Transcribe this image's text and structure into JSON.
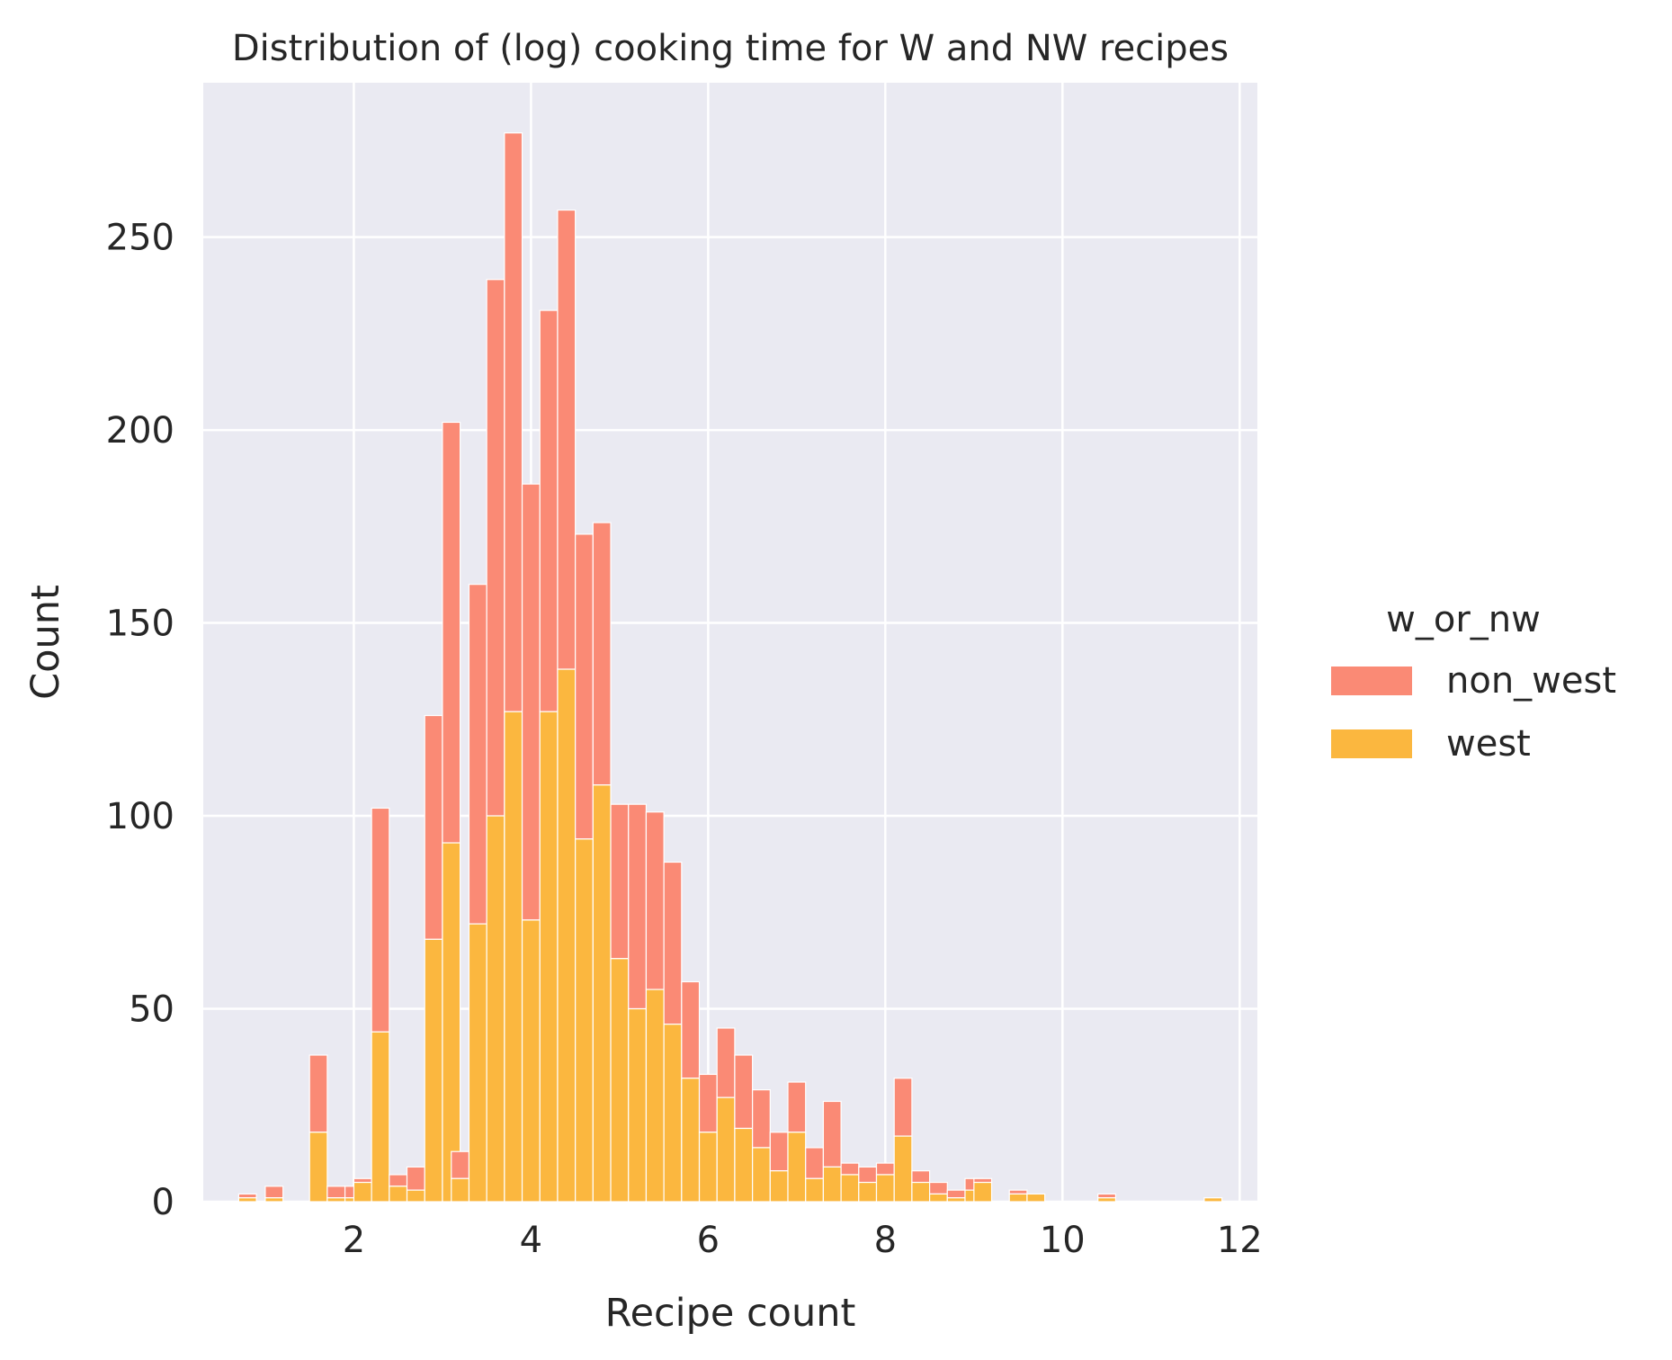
{
  "chart_data": {
    "type": "bar",
    "subtype": "stacked-histogram",
    "title": "Distribution of (log) cooking time for W and NW recipes",
    "xlabel": "Recipe count",
    "ylabel": "Count",
    "xlim": [
      0.3,
      12.2
    ],
    "ylim": [
      0,
      290
    ],
    "xticks": [
      2,
      4,
      6,
      8,
      10,
      12
    ],
    "yticks": [
      0,
      50,
      100,
      150,
      200,
      250
    ],
    "grid": true,
    "legend": {
      "title": "w_or_nw",
      "placement": "right",
      "entries": [
        "non_west",
        "west"
      ]
    },
    "colors": {
      "non_west": "#fa8a75",
      "west": "#fbb73f",
      "background": "#eaeaf2",
      "grid": "#ffffff"
    },
    "bin_width": 0.2,
    "series": [
      {
        "name": "west",
        "bins": [
          {
            "x": 0.8,
            "value": 1
          },
          {
            "x": 1.1,
            "value": 1
          },
          {
            "x": 1.6,
            "value": 18
          },
          {
            "x": 1.8,
            "value": 1
          },
          {
            "x": 2.0,
            "value": 1
          },
          {
            "x": 2.1,
            "value": 5
          },
          {
            "x": 2.3,
            "value": 44
          },
          {
            "x": 2.5,
            "value": 4
          },
          {
            "x": 2.7,
            "value": 3
          },
          {
            "x": 2.9,
            "value": 68
          },
          {
            "x": 3.1,
            "value": 93
          },
          {
            "x": 3.2,
            "value": 6
          },
          {
            "x": 3.4,
            "value": 72
          },
          {
            "x": 3.6,
            "value": 100
          },
          {
            "x": 3.8,
            "value": 127
          },
          {
            "x": 4.0,
            "value": 73
          },
          {
            "x": 4.2,
            "value": 127
          },
          {
            "x": 4.4,
            "value": 138
          },
          {
            "x": 4.6,
            "value": 94
          },
          {
            "x": 4.8,
            "value": 108
          },
          {
            "x": 5.0,
            "value": 63
          },
          {
            "x": 5.2,
            "value": 50
          },
          {
            "x": 5.4,
            "value": 55
          },
          {
            "x": 5.6,
            "value": 46
          },
          {
            "x": 5.8,
            "value": 32
          },
          {
            "x": 6.0,
            "value": 18
          },
          {
            "x": 6.2,
            "value": 27
          },
          {
            "x": 6.4,
            "value": 19
          },
          {
            "x": 6.6,
            "value": 14
          },
          {
            "x": 6.8,
            "value": 8
          },
          {
            "x": 7.0,
            "value": 18
          },
          {
            "x": 7.2,
            "value": 6
          },
          {
            "x": 7.4,
            "value": 9
          },
          {
            "x": 7.6,
            "value": 7
          },
          {
            "x": 7.8,
            "value": 5
          },
          {
            "x": 8.0,
            "value": 7
          },
          {
            "x": 8.2,
            "value": 17
          },
          {
            "x": 8.4,
            "value": 5
          },
          {
            "x": 8.6,
            "value": 2
          },
          {
            "x": 8.8,
            "value": 1
          },
          {
            "x": 9.0,
            "value": 3
          },
          {
            "x": 9.1,
            "value": 5
          },
          {
            "x": 9.5,
            "value": 2
          },
          {
            "x": 9.7,
            "value": 2
          },
          {
            "x": 10.5,
            "value": 1
          },
          {
            "x": 11.7,
            "value": 1
          }
        ]
      },
      {
        "name": "non_west",
        "bins": [
          {
            "x": 0.8,
            "value": 1
          },
          {
            "x": 1.1,
            "value": 3
          },
          {
            "x": 1.6,
            "value": 20
          },
          {
            "x": 1.8,
            "value": 3
          },
          {
            "x": 2.0,
            "value": 3
          },
          {
            "x": 2.1,
            "value": 1
          },
          {
            "x": 2.3,
            "value": 58
          },
          {
            "x": 2.5,
            "value": 3
          },
          {
            "x": 2.7,
            "value": 6
          },
          {
            "x": 2.9,
            "value": 58
          },
          {
            "x": 3.1,
            "value": 109
          },
          {
            "x": 3.2,
            "value": 7
          },
          {
            "x": 3.4,
            "value": 88
          },
          {
            "x": 3.6,
            "value": 139
          },
          {
            "x": 3.8,
            "value": 150
          },
          {
            "x": 4.0,
            "value": 113
          },
          {
            "x": 4.2,
            "value": 104
          },
          {
            "x": 4.4,
            "value": 119
          },
          {
            "x": 4.6,
            "value": 79
          },
          {
            "x": 4.8,
            "value": 68
          },
          {
            "x": 5.0,
            "value": 40
          },
          {
            "x": 5.2,
            "value": 53
          },
          {
            "x": 5.4,
            "value": 46
          },
          {
            "x": 5.6,
            "value": 42
          },
          {
            "x": 5.8,
            "value": 25
          },
          {
            "x": 6.0,
            "value": 15
          },
          {
            "x": 6.2,
            "value": 18
          },
          {
            "x": 6.4,
            "value": 19
          },
          {
            "x": 6.6,
            "value": 15
          },
          {
            "x": 6.8,
            "value": 10
          },
          {
            "x": 7.0,
            "value": 13
          },
          {
            "x": 7.2,
            "value": 8
          },
          {
            "x": 7.4,
            "value": 17
          },
          {
            "x": 7.6,
            "value": 3
          },
          {
            "x": 7.8,
            "value": 4
          },
          {
            "x": 8.0,
            "value": 3
          },
          {
            "x": 8.2,
            "value": 15
          },
          {
            "x": 8.4,
            "value": 3
          },
          {
            "x": 8.6,
            "value": 3
          },
          {
            "x": 8.8,
            "value": 2
          },
          {
            "x": 9.0,
            "value": 3
          },
          {
            "x": 9.1,
            "value": 1
          },
          {
            "x": 9.5,
            "value": 1
          },
          {
            "x": 9.7,
            "value": 0
          },
          {
            "x": 10.5,
            "value": 1
          },
          {
            "x": 11.7,
            "value": 0
          }
        ]
      }
    ]
  }
}
